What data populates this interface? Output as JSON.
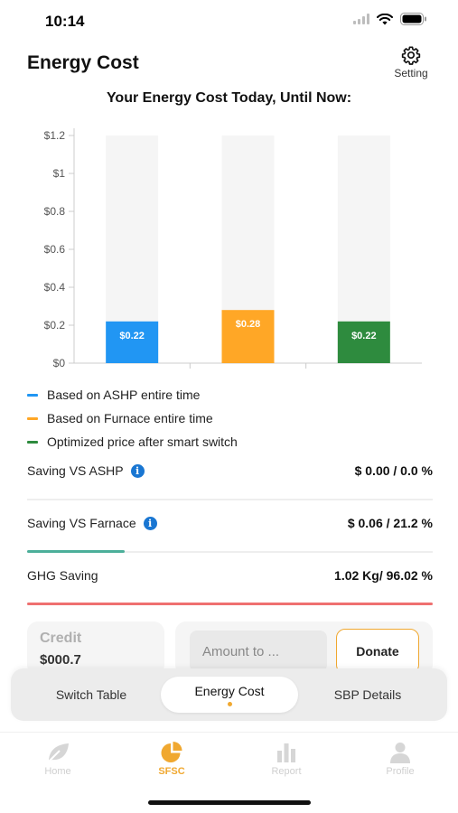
{
  "status_bar": {
    "time": "10:14"
  },
  "header": {
    "title": "Energy Cost",
    "setting_label": "Setting"
  },
  "chart_data": {
    "type": "bar",
    "title": "Your Energy Cost Today, Until Now:",
    "categories": [
      "Based on ASHP entire time",
      "Based on Furnace entire time",
      "Optimized price after smart switch"
    ],
    "values": [
      0.22,
      0.28,
      0.22
    ],
    "data_labels": [
      "$0.22",
      "$0.28",
      "$0.22"
    ],
    "colors": [
      "#2196f3",
      "#ffa726",
      "#2e8b3e"
    ],
    "background_color": "#f5f5f5",
    "ylim": [
      0,
      1.2
    ],
    "yticks": [
      0,
      0.2,
      0.4,
      0.6,
      0.8,
      1,
      1.2
    ],
    "ytick_labels": [
      "$0",
      "$0.2",
      "$0.4",
      "$0.6",
      "$0.8",
      "$1",
      "$1.2"
    ],
    "xlabel": "",
    "ylabel": "",
    "legend_position": "bottom"
  },
  "legend": [
    {
      "label": "Based on ASHP entire time",
      "color": "#2196f3"
    },
    {
      "label": "Based on Furnace entire time",
      "color": "#ffa726"
    },
    {
      "label": "Optimized price after smart switch",
      "color": "#2e8b3e"
    }
  ],
  "savings": {
    "ashp": {
      "label": "Saving VS ASHP",
      "value": "$ 0.00 / 0.0 %",
      "progress": 0.0,
      "bar_color": "#2196f3"
    },
    "furnace": {
      "label": "Saving VS Farnace",
      "value": "$ 0.06 / 21.2 %",
      "progress": 0.24,
      "bar_color": "#4caf9a"
    },
    "ghg": {
      "label": "GHG Saving",
      "value": "1.02 Kg/ 96.02 %",
      "progress": 1.0,
      "bar_color": "#ef7070"
    }
  },
  "credit": {
    "label": "Credit",
    "value": "$000.7"
  },
  "donate": {
    "placeholder": "Amount to ...",
    "button_label": "Donate"
  },
  "segments": {
    "switch_table": "Switch Table",
    "energy_cost": "Energy Cost",
    "sbp_details": "SBP Details"
  },
  "tabs": {
    "home": "Home",
    "sfsc": "SFSC",
    "report": "Report",
    "profile": "Profile"
  },
  "accent_color": "#f0a830"
}
